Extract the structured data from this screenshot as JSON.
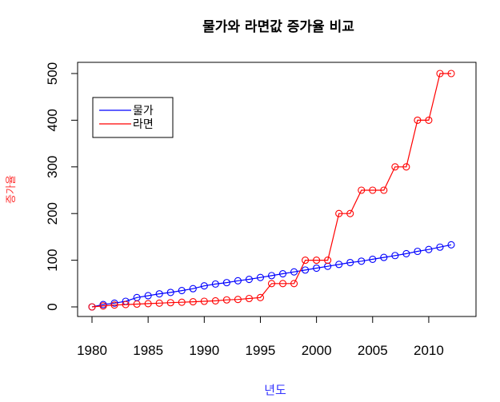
{
  "chart_data": {
    "type": "line",
    "title": "물가와 라면값 증가율 비교",
    "xlabel": "년도",
    "ylabel": "증가율",
    "xlabel_color": "#3333ff",
    "ylabel_color": "#ff3333",
    "xlim": [
      1980,
      2012
    ],
    "ylim": [
      0,
      500
    ],
    "x_ticks": [
      1980,
      1985,
      1990,
      1995,
      2000,
      2005,
      2010
    ],
    "y_ticks": [
      0,
      100,
      200,
      300,
      400,
      500
    ],
    "legend_position": "top-left",
    "grid": false,
    "x": [
      1980,
      1981,
      1982,
      1983,
      1984,
      1985,
      1986,
      1987,
      1988,
      1989,
      1990,
      1991,
      1992,
      1993,
      1994,
      1995,
      1996,
      1997,
      1998,
      1999,
      2000,
      2001,
      2002,
      2003,
      2004,
      2005,
      2006,
      2007,
      2008,
      2009,
      2010,
      2011,
      2012
    ],
    "series": [
      {
        "name": "물가",
        "color": "#0000ff",
        "values": [
          0,
          5,
          8,
          12,
          20,
          24,
          28,
          31,
          35,
          39,
          45,
          49,
          52,
          56,
          59,
          63,
          67,
          71,
          75,
          79,
          83,
          87,
          91,
          95,
          98,
          102,
          106,
          110,
          114,
          119,
          123,
          128,
          133
        ]
      },
      {
        "name": "라면",
        "color": "#ff0000",
        "values": [
          0,
          2,
          4,
          5,
          6,
          7,
          8,
          9,
          10,
          11,
          12,
          13,
          15,
          16,
          18,
          20,
          50,
          50,
          50,
          100,
          100,
          100,
          200,
          200,
          250,
          250,
          250,
          300,
          300,
          400,
          400,
          500,
          500
        ]
      }
    ]
  }
}
